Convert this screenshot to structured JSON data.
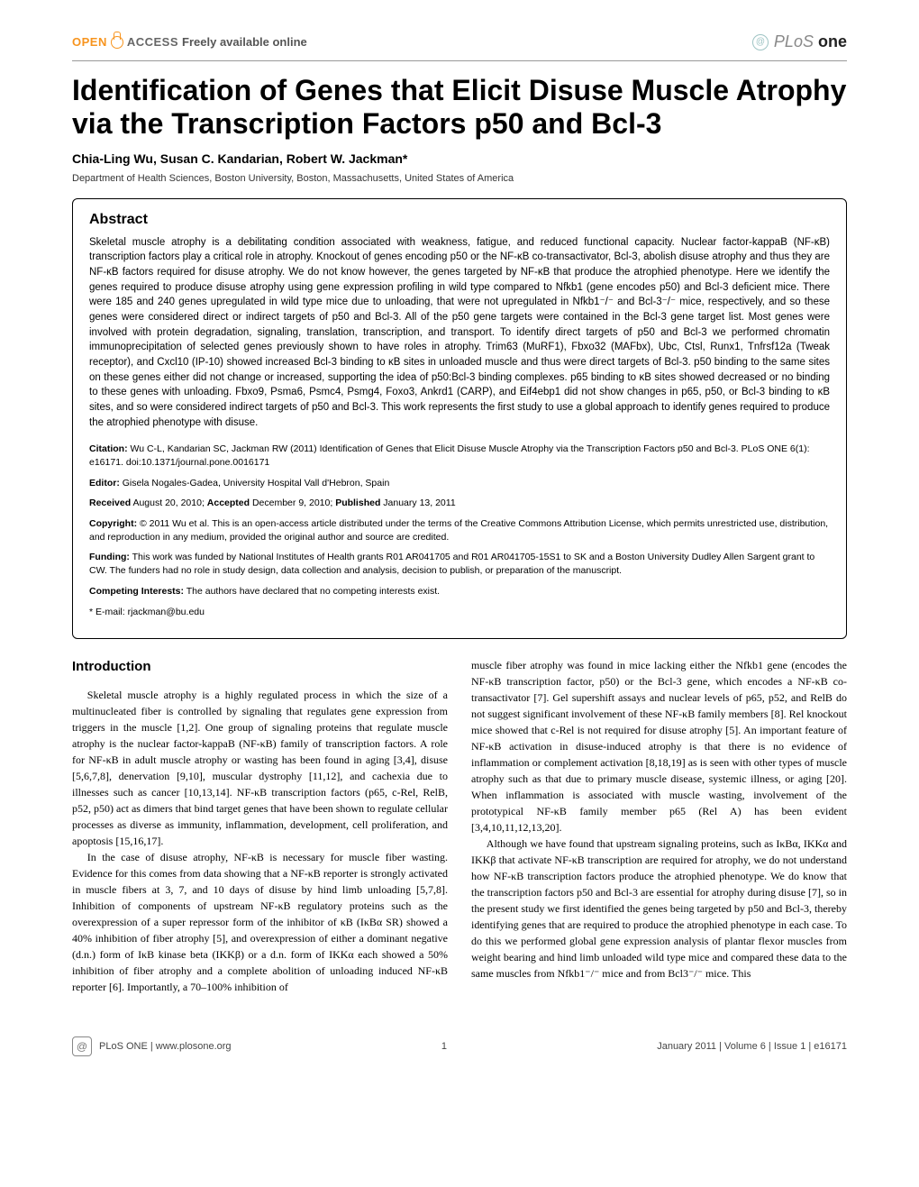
{
  "header": {
    "open": "OPEN",
    "access": "ACCESS",
    "freely": "Freely available online",
    "plos": "PLoS",
    "one": "one"
  },
  "title": "Identification of Genes that Elicit Disuse Muscle Atrophy via the Transcription Factors p50 and Bcl-3",
  "authors": "Chia-Ling Wu, Susan C. Kandarian, Robert W. Jackman*",
  "affiliation": "Department of Health Sciences, Boston University, Boston, Massachusetts, United States of America",
  "abstract": {
    "heading": "Abstract",
    "body": "Skeletal muscle atrophy is a debilitating condition associated with weakness, fatigue, and reduced functional capacity. Nuclear factor-kappaB (NF-κB) transcription factors play a critical role in atrophy. Knockout of genes encoding p50 or the NF-κB co-transactivator, Bcl-3, abolish disuse atrophy and thus they are NF-κB factors required for disuse atrophy. We do not know however, the genes targeted by NF-κB that produce the atrophied phenotype. Here we identify the genes required to produce disuse atrophy using gene expression profiling in wild type compared to Nfkb1 (gene encodes p50) and Bcl-3 deficient mice. There were 185 and 240 genes upregulated in wild type mice due to unloading, that were not upregulated in Nfkb1⁻/⁻ and Bcl-3⁻/⁻ mice, respectively, and so these genes were considered direct or indirect targets of p50 and Bcl-3. All of the p50 gene targets were contained in the Bcl-3 gene target list. Most genes were involved with protein degradation, signaling, translation, transcription, and transport. To identify direct targets of p50 and Bcl-3 we performed chromatin immunoprecipitation of selected genes previously shown to have roles in atrophy. Trim63 (MuRF1), Fbxo32 (MAFbx), Ubc, Ctsl, Runx1, Tnfrsf12a (Tweak receptor), and Cxcl10 (IP-10) showed increased Bcl-3 binding to κB sites in unloaded muscle and thus were direct targets of Bcl-3. p50 binding to the same sites on these genes either did not change or increased, supporting the idea of p50:Bcl-3 binding complexes. p65 binding to κB sites showed decreased or no binding to these genes with unloading. Fbxo9, Psma6, Psmc4, Psmg4, Foxo3, Ankrd1 (CARP), and Eif4ebp1 did not show changes in p65, p50, or Bcl-3 binding to κB sites, and so were considered indirect targets of p50 and Bcl-3. This work represents the first study to use a global approach to identify genes required to produce the atrophied phenotype with disuse."
  },
  "meta": {
    "citation_label": "Citation:",
    "citation": " Wu C-L, Kandarian SC, Jackman RW (2011) Identification of Genes that Elicit Disuse Muscle Atrophy via the Transcription Factors p50 and Bcl-3. PLoS ONE 6(1): e16171. doi:10.1371/journal.pone.0016171",
    "editor_label": "Editor:",
    "editor": " Gisela Nogales-Gadea, University Hospital Vall d'Hebron, Spain",
    "received_label": "Received",
    "received": " August 20, 2010; ",
    "accepted_label": "Accepted",
    "accepted": " December 9, 2010; ",
    "published_label": "Published",
    "published": " January 13, 2011",
    "copyright_label": "Copyright:",
    "copyright": " © 2011 Wu et al. This is an open-access article distributed under the terms of the Creative Commons Attribution License, which permits unrestricted use, distribution, and reproduction in any medium, provided the original author and source are credited.",
    "funding_label": "Funding:",
    "funding": " This work was funded by National Institutes of Health grants R01 AR041705 and R01 AR041705-15S1 to SK and a Boston University Dudley Allen Sargent grant to CW. The funders had no role in study design, data collection and analysis, decision to publish, or preparation of the manuscript.",
    "competing_label": "Competing Interests:",
    "competing": " The authors have declared that no competing interests exist.",
    "email": "* E-mail: rjackman@bu.edu"
  },
  "intro_heading": "Introduction",
  "col1": {
    "p1": "Skeletal muscle atrophy is a highly regulated process in which the size of a multinucleated fiber is controlled by signaling that regulates gene expression from triggers in the muscle [1,2]. One group of signaling proteins that regulate muscle atrophy is the nuclear factor-kappaB (NF-κB) family of transcription factors. A role for NF-κB in adult muscle atrophy or wasting has been found in aging [3,4], disuse [5,6,7,8], denervation [9,10], muscular dystrophy [11,12], and cachexia due to illnesses such as cancer [10,13,14]. NF-κB transcription factors (p65, c-Rel, RelB, p52, p50) act as dimers that bind target genes that have been shown to regulate cellular processes as diverse as immunity, inflammation, development, cell proliferation, and apoptosis [15,16,17].",
    "p2": "In the case of disuse atrophy, NF-κB is necessary for muscle fiber wasting. Evidence for this comes from data showing that a NF-κB reporter is strongly activated in muscle fibers at 3, 7, and 10 days of disuse by hind limb unloading [5,7,8]. Inhibition of components of upstream NF-κB regulatory proteins such as the overexpression of a super repressor form of the inhibitor of κB (IκBα SR) showed a 40% inhibition of fiber atrophy [5], and overexpression of either a dominant negative (d.n.) form of IκB kinase beta (IKKβ) or a d.n. form of IKKα each showed a 50% inhibition of fiber atrophy and a complete abolition of unloading induced NF-κB reporter [6]. Importantly, a 70–100% inhibition of"
  },
  "col2": {
    "p1": "muscle fiber atrophy was found in mice lacking either the Nfkb1 gene (encodes the NF-κB transcription factor, p50) or the Bcl-3 gene, which encodes a NF-κB co-transactivator [7]. Gel supershift assays and nuclear levels of p65, p52, and RelB do not suggest significant involvement of these NF-κB family members [8]. Rel knockout mice showed that c-Rel is not required for disuse atrophy [5]. An important feature of NF-κB activation in disuse-induced atrophy is that there is no evidence of inflammation or complement activation [8,18,19] as is seen with other types of muscle atrophy such as that due to primary muscle disease, systemic illness, or aging [20]. When inflammation is associated with muscle wasting, involvement of the prototypical NF-κB family member p65 (Rel A) has been evident [3,4,10,11,12,13,20].",
    "p2": "Although we have found that upstream signaling proteins, such as IκBα, IKKα and IKKβ that activate NF-κB transcription are required for atrophy, we do not understand how NF-κB transcription factors produce the atrophied phenotype. We do know that the transcription factors p50 and Bcl-3 are essential for atrophy during disuse [7], so in the present study we first identified the genes being targeted by p50 and Bcl-3, thereby identifying genes that are required to produce the atrophied phenotype in each case. To do this we performed global gene expression analysis of plantar flexor muscles from weight bearing and hind limb unloaded wild type mice and compared these data to the same muscles from Nfkb1⁻/⁻ mice and from Bcl3⁻/⁻ mice. This"
  },
  "footer": {
    "site": "PLoS ONE | www.plosone.org",
    "page": "1",
    "issue": "January 2011 | Volume 6 | Issue 1 | e16171"
  }
}
